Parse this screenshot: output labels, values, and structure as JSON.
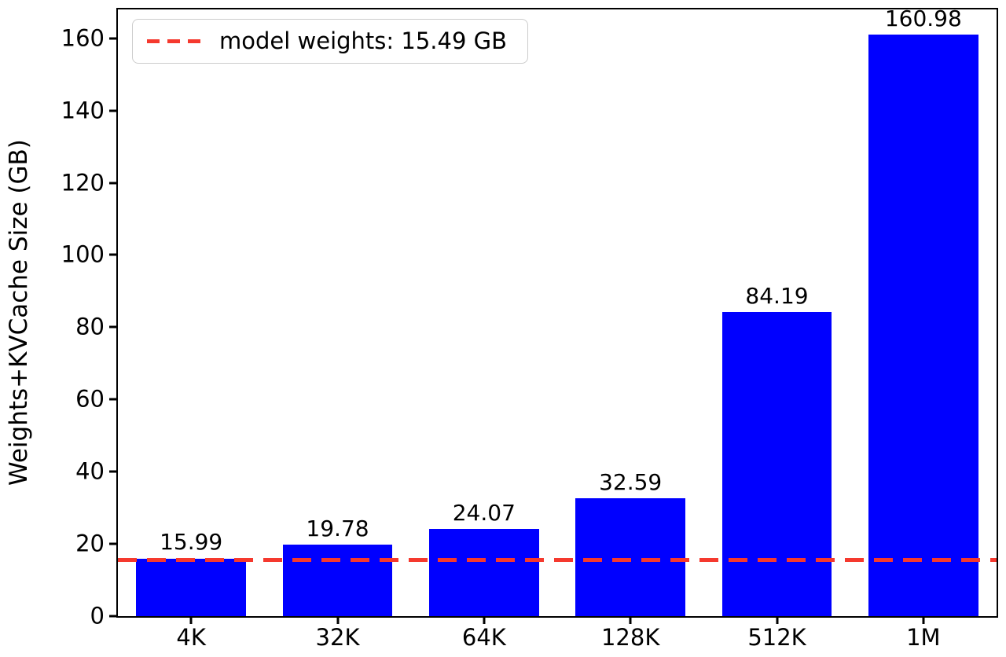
{
  "chart_data": {
    "type": "bar",
    "title": "",
    "xlabel": "",
    "ylabel": "Weights+KVCache Size (GB)",
    "categories": [
      "4K",
      "32K",
      "64K",
      "128K",
      "512K",
      "1M"
    ],
    "values": [
      15.99,
      19.78,
      24.07,
      32.59,
      84.19,
      160.98
    ],
    "bar_labels": [
      "15.99",
      "19.78",
      "24.07",
      "32.59",
      "84.19",
      "160.98"
    ],
    "ylim": [
      0,
      168
    ],
    "yticks": [
      0,
      20,
      40,
      60,
      80,
      100,
      120,
      140,
      160
    ],
    "grid": false,
    "bar_color": "#0000ff",
    "axis_color": "#000000",
    "background_color": "#ffffff",
    "reference_line": {
      "value": 15.49,
      "label": "model weights: 15.49 GB",
      "color": "#f5392e",
      "style": "dashed"
    },
    "legend": {
      "position": "upper-left",
      "entries": [
        "model weights: 15.49 GB"
      ]
    }
  }
}
